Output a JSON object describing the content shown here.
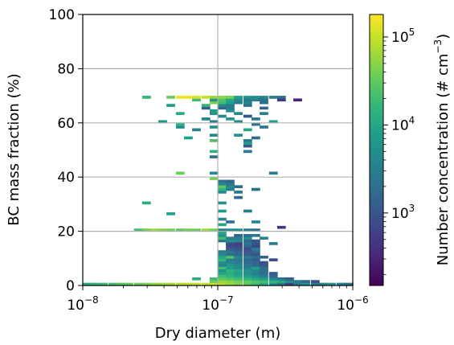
{
  "chart_data": {
    "type": "heatmap",
    "title": "",
    "xlabel": "Dry diameter (m)",
    "ylabel": "BC mass fraction (%)",
    "xscale": "log",
    "xlim": [
      1e-08,
      1e-06
    ],
    "ylim": [
      0,
      100
    ],
    "grid": true,
    "x_ticks": [
      {
        "value": 1e-08,
        "base": "10",
        "exp": "−8"
      },
      {
        "value": 1e-07,
        "base": "10",
        "exp": "−7"
      },
      {
        "value": 1e-06,
        "base": "10",
        "exp": "−6"
      }
    ],
    "y_ticks": [
      {
        "value": 0,
        "label": "0"
      },
      {
        "value": 20,
        "label": "20"
      },
      {
        "value": 40,
        "label": "40"
      },
      {
        "value": 60,
        "label": "60"
      },
      {
        "value": 80,
        "label": "80"
      },
      {
        "value": 100,
        "label": "100"
      }
    ],
    "colorbar": {
      "label": "Number concentration (# cm",
      "label_exp": "−3",
      "label_close": ")",
      "scale": "log",
      "colormap": "viridis",
      "range": [
        150,
        180000
      ],
      "ticks": [
        {
          "value": 1000,
          "base": "10",
          "exp": "3"
        },
        {
          "value": 10000,
          "base": "10",
          "exp": "4"
        },
        {
          "value": 100000,
          "base": "10",
          "exp": "5"
        }
      ]
    },
    "bins_per_decade": 16,
    "y_bin_width": 1,
    "cells": [
      [
        -8.0,
        0.5,
        12000
      ],
      [
        -7.94,
        0.5,
        15000
      ],
      [
        -7.88,
        0.5,
        18000
      ],
      [
        -7.81,
        0.5,
        20000
      ],
      [
        -7.75,
        0.5,
        25000
      ],
      [
        -7.69,
        0.5,
        30000
      ],
      [
        -7.62,
        0.5,
        35000
      ],
      [
        -7.56,
        0.5,
        40000
      ],
      [
        -7.5,
        0.5,
        50000
      ],
      [
        -7.44,
        0.5,
        60000
      ],
      [
        -7.38,
        0.5,
        70000
      ],
      [
        -7.31,
        0.5,
        80000
      ],
      [
        -7.25,
        0.5,
        90000
      ],
      [
        -7.19,
        0.5,
        100000
      ],
      [
        -7.12,
        0.5,
        100000
      ],
      [
        -7.06,
        0.5,
        100000
      ],
      [
        -7.0,
        0.5,
        80000
      ],
      [
        -6.94,
        0.5,
        60000
      ],
      [
        -6.88,
        0.5,
        45000
      ],
      [
        -6.81,
        0.5,
        30000
      ],
      [
        -6.75,
        0.5,
        20000
      ],
      [
        -6.69,
        0.5,
        12000
      ],
      [
        -6.62,
        0.5,
        6000
      ],
      [
        -6.56,
        0.5,
        2500
      ],
      [
        -6.5,
        0.5,
        600
      ],
      [
        -6.44,
        0.5,
        3000
      ],
      [
        -6.38,
        0.5,
        5000
      ],
      [
        -6.31,
        0.5,
        3000
      ],
      [
        -6.25,
        0.5,
        4000
      ],
      [
        -6.19,
        0.5,
        6000
      ],
      [
        -6.12,
        0.5,
        3000
      ],
      [
        -6.06,
        0.5,
        2000
      ],
      [
        -7.06,
        1.5,
        40000
      ],
      [
        -7.0,
        1.5,
        60000
      ],
      [
        -6.94,
        1.5,
        50000
      ],
      [
        -6.88,
        1.5,
        40000
      ],
      [
        -6.81,
        1.5,
        30000
      ],
      [
        -6.75,
        1.5,
        25000
      ],
      [
        -6.69,
        1.5,
        20000
      ],
      [
        -6.62,
        1.5,
        15000
      ],
      [
        -6.56,
        1.5,
        10000
      ],
      [
        -6.5,
        1.5,
        5000
      ],
      [
        -6.44,
        1.5,
        3000
      ],
      [
        -6.38,
        1.5,
        1500
      ],
      [
        -6.31,
        1.5,
        800
      ],
      [
        -7.19,
        2.5,
        12000
      ],
      [
        -7.06,
        2.5,
        20000
      ],
      [
        -7.0,
        2.5,
        30000
      ],
      [
        -6.94,
        2.5,
        25000
      ],
      [
        -6.88,
        2.5,
        20000
      ],
      [
        -6.81,
        2.5,
        15000
      ],
      [
        -6.75,
        2.5,
        10000
      ],
      [
        -6.69,
        2.5,
        7000
      ],
      [
        -6.62,
        2.5,
        4000
      ],
      [
        -6.56,
        2.5,
        2500
      ],
      [
        -6.5,
        2.5,
        1200
      ],
      [
        -7.0,
        3.5,
        20000
      ],
      [
        -6.94,
        3.5,
        15000
      ],
      [
        -6.88,
        3.5,
        10000
      ],
      [
        -6.81,
        3.5,
        8000
      ],
      [
        -6.75,
        3.5,
        6000
      ],
      [
        -6.69,
        3.5,
        3000
      ],
      [
        -6.62,
        3.5,
        1500
      ],
      [
        -7.0,
        4.5,
        10000
      ],
      [
        -6.94,
        4.5,
        12000
      ],
      [
        -6.88,
        4.5,
        8000
      ],
      [
        -6.81,
        4.5,
        5000
      ],
      [
        -6.75,
        4.5,
        3000
      ],
      [
        -6.69,
        4.5,
        2000
      ],
      [
        -6.62,
        4.5,
        1200
      ],
      [
        -7.0,
        5.5,
        6000
      ],
      [
        -6.94,
        5.5,
        15000
      ],
      [
        -6.88,
        5.5,
        10000
      ],
      [
        -6.81,
        5.5,
        6000
      ],
      [
        -6.75,
        5.5,
        4000
      ],
      [
        -6.69,
        5.5,
        2000
      ],
      [
        -7.0,
        6.5,
        20000
      ],
      [
        -6.94,
        6.5,
        8000
      ],
      [
        -6.88,
        6.5,
        5000
      ],
      [
        -6.81,
        6.5,
        3000
      ],
      [
        -6.75,
        6.5,
        8000
      ],
      [
        -6.69,
        6.5,
        2000
      ],
      [
        -7.0,
        7.5,
        3000
      ],
      [
        -6.94,
        7.5,
        6000
      ],
      [
        -6.88,
        7.5,
        4000
      ],
      [
        -6.81,
        7.5,
        2500
      ],
      [
        -6.75,
        7.5,
        1500
      ],
      [
        -6.69,
        7.5,
        1000
      ],
      [
        -7.0,
        8.5,
        5000
      ],
      [
        -6.94,
        8.5,
        4000
      ],
      [
        -6.88,
        8.5,
        3000
      ],
      [
        -6.81,
        8.5,
        2000
      ],
      [
        -6.75,
        8.5,
        1500
      ],
      [
        -6.69,
        8.5,
        900
      ],
      [
        -7.0,
        9.5,
        15000
      ],
      [
        -6.94,
        9.5,
        3000
      ],
      [
        -6.88,
        9.5,
        2500
      ],
      [
        -6.81,
        9.5,
        1800
      ],
      [
        -6.75,
        9.5,
        1200
      ],
      [
        -6.62,
        9.5,
        800
      ],
      [
        -7.0,
        10.5,
        10000
      ],
      [
        -6.94,
        10.5,
        25000
      ],
      [
        -6.88,
        10.5,
        4000
      ],
      [
        -6.81,
        10.5,
        3000
      ],
      [
        -6.75,
        10.5,
        2000
      ],
      [
        -6.69,
        10.5,
        1500
      ],
      [
        -7.0,
        11.5,
        4000
      ],
      [
        -6.94,
        11.5,
        2000
      ],
      [
        -6.88,
        11.5,
        1500
      ],
      [
        -6.81,
        11.5,
        1200
      ],
      [
        -6.75,
        11.5,
        900
      ],
      [
        -7.0,
        12.5,
        3000
      ],
      [
        -6.94,
        12.5,
        2500
      ],
      [
        -6.88,
        12.5,
        1500
      ],
      [
        -6.81,
        12.5,
        1000
      ],
      [
        -6.75,
        12.5,
        1500
      ],
      [
        -6.94,
        13.5,
        1200
      ],
      [
        -6.88,
        13.5,
        1000
      ],
      [
        -6.81,
        13.5,
        800
      ],
      [
        -6.75,
        13.5,
        3000
      ],
      [
        -6.94,
        14.5,
        800
      ],
      [
        -6.88,
        14.5,
        700
      ],
      [
        -6.81,
        14.5,
        1500
      ],
      [
        -6.75,
        14.5,
        700
      ],
      [
        -6.94,
        15.5,
        900
      ],
      [
        -6.88,
        15.5,
        600
      ],
      [
        -6.81,
        15.5,
        2500
      ],
      [
        -6.75,
        15.5,
        1000
      ],
      [
        -6.62,
        15.5,
        3000
      ],
      [
        -7.0,
        16.5,
        2500
      ],
      [
        -6.94,
        16.5,
        5000
      ],
      [
        -6.88,
        16.5,
        4000
      ],
      [
        -6.81,
        16.5,
        1500
      ],
      [
        -6.75,
        16.5,
        1000
      ],
      [
        -7.0,
        17.5,
        20000
      ],
      [
        -6.94,
        17.5,
        3000
      ],
      [
        -6.88,
        17.5,
        3000
      ],
      [
        -6.81,
        17.5,
        6000
      ],
      [
        -6.69,
        17.5,
        4000
      ],
      [
        -7.0,
        18.5,
        6000
      ],
      [
        -6.88,
        18.5,
        1500
      ],
      [
        -6.81,
        18.5,
        2000
      ],
      [
        -6.75,
        18.5,
        2500
      ],
      [
        -7.0,
        19.5,
        10000
      ],
      [
        -7.62,
        20.5,
        20000
      ],
      [
        -7.56,
        20.5,
        40000
      ],
      [
        -7.5,
        20.5,
        60000
      ],
      [
        -7.44,
        20.5,
        50000
      ],
      [
        -7.38,
        20.5,
        40000
      ],
      [
        -7.31,
        20.5,
        30000
      ],
      [
        -7.25,
        20.5,
        40000
      ],
      [
        -7.19,
        20.5,
        35000
      ],
      [
        -7.12,
        20.5,
        60000
      ],
      [
        -7.06,
        20.5,
        40000
      ],
      [
        -7.0,
        20.5,
        3000
      ],
      [
        -6.94,
        20.5,
        5000
      ],
      [
        -6.88,
        20.5,
        6000
      ],
      [
        -6.81,
        20.5,
        3000
      ],
      [
        -6.75,
        20.5,
        2000
      ],
      [
        -6.56,
        21.5,
        500
      ],
      [
        -7.0,
        22.5,
        10000
      ],
      [
        -6.94,
        23.5,
        2000
      ],
      [
        -6.75,
        23.5,
        4000
      ],
      [
        -7.0,
        24.5,
        4000
      ],
      [
        -7.38,
        26.5,
        9000
      ],
      [
        -7.0,
        27.5,
        8000
      ],
      [
        -6.81,
        27.5,
        3000
      ],
      [
        -7.56,
        30.5,
        12000
      ],
      [
        -7.0,
        30.5,
        5000
      ],
      [
        -6.88,
        32.5,
        1500
      ],
      [
        -7.0,
        34.5,
        4000
      ],
      [
        -6.88,
        34.5,
        2500
      ],
      [
        -7.0,
        35.5,
        15000
      ],
      [
        -6.94,
        35.5,
        3000
      ],
      [
        -6.75,
        35.5,
        2000
      ],
      [
        -7.0,
        36.5,
        30000
      ],
      [
        -6.94,
        36.5,
        4000
      ],
      [
        -6.88,
        36.5,
        2000
      ],
      [
        -7.0,
        37.5,
        4000
      ],
      [
        -6.94,
        37.5,
        2500
      ],
      [
        -7.0,
        38.5,
        2000
      ],
      [
        -6.94,
        38.5,
        1500
      ],
      [
        -7.06,
        39.5,
        40000
      ],
      [
        -7.31,
        41.5,
        35000
      ],
      [
        -7.06,
        41.5,
        4000
      ],
      [
        -6.62,
        41.5,
        3000
      ],
      [
        -7.06,
        47.5,
        2000
      ],
      [
        -7.06,
        49.5,
        15000
      ],
      [
        -6.81,
        49.5,
        3000
      ],
      [
        -6.81,
        51.5,
        1000
      ],
      [
        -6.81,
        52.5,
        7000
      ],
      [
        -7.06,
        53.5,
        25000
      ],
      [
        -6.81,
        53.5,
        3000
      ],
      [
        -7.06,
        55.5,
        4000
      ],
      [
        -6.88,
        55.5,
        5000
      ],
      [
        -7.25,
        54.5,
        8000
      ],
      [
        -6.75,
        54.5,
        2000
      ],
      [
        -7.19,
        57.5,
        3000
      ],
      [
        -6.81,
        57.5,
        10000
      ],
      [
        -7.31,
        58.5,
        5000
      ],
      [
        -7.06,
        58.5,
        5000
      ],
      [
        -6.69,
        58.5,
        2000
      ],
      [
        -7.31,
        59.5,
        15000
      ],
      [
        -6.75,
        59.5,
        2500
      ],
      [
        -7.06,
        60.5,
        3000
      ],
      [
        -6.88,
        60.5,
        5000
      ],
      [
        -6.62,
        60.5,
        8000
      ],
      [
        -7.44,
        60.5,
        6000
      ],
      [
        -7.12,
        61.5,
        3500
      ],
      [
        -6.94,
        61.5,
        6000
      ],
      [
        -6.75,
        61.5,
        2500
      ],
      [
        -7.0,
        62.5,
        4000
      ],
      [
        -6.81,
        62.5,
        1000
      ],
      [
        -7.31,
        63.5,
        12000
      ],
      [
        -7.06,
        63.5,
        6000
      ],
      [
        -6.88,
        63.5,
        4000
      ],
      [
        -6.69,
        63.5,
        3000
      ],
      [
        -7.06,
        64.5,
        8000
      ],
      [
        -6.94,
        64.5,
        5000
      ],
      [
        -7.12,
        65.5,
        1200
      ],
      [
        -7.0,
        65.5,
        1500
      ],
      [
        -6.94,
        65.5,
        3000
      ],
      [
        -6.69,
        65.5,
        1500
      ],
      [
        -7.38,
        66.5,
        8000
      ],
      [
        -7.12,
        66.5,
        15000
      ],
      [
        -7.0,
        66.5,
        4000
      ],
      [
        -6.94,
        66.5,
        2500
      ],
      [
        -6.81,
        66.5,
        2000
      ],
      [
        -7.06,
        67.5,
        40000
      ],
      [
        -7.0,
        67.5,
        20000
      ],
      [
        -6.94,
        67.5,
        8000
      ],
      [
        -6.88,
        67.5,
        3000
      ],
      [
        -6.81,
        67.5,
        4000
      ],
      [
        -6.69,
        67.5,
        1800
      ],
      [
        -7.19,
        68.5,
        20000
      ],
      [
        -7.06,
        68.5,
        6000
      ],
      [
        -7.0,
        68.5,
        25000
      ],
      [
        -6.94,
        68.5,
        10000
      ],
      [
        -6.88,
        68.5,
        5000
      ],
      [
        -6.81,
        68.5,
        2500
      ],
      [
        -6.75,
        68.5,
        3000
      ],
      [
        -6.69,
        68.5,
        2000
      ],
      [
        -6.56,
        68.5,
        500
      ],
      [
        -6.44,
        68.5,
        300
      ],
      [
        -7.56,
        69.5,
        15000
      ],
      [
        -7.38,
        69.5,
        35000
      ],
      [
        -7.31,
        69.5,
        150000
      ],
      [
        -7.25,
        69.5,
        150000
      ],
      [
        -7.19,
        69.5,
        120000
      ],
      [
        -7.12,
        69.5,
        100000
      ],
      [
        -7.06,
        69.5,
        60000
      ],
      [
        -7.0,
        69.5,
        50000
      ],
      [
        -6.94,
        69.5,
        40000
      ],
      [
        -6.88,
        69.5,
        8000
      ],
      [
        -6.81,
        69.5,
        6000
      ],
      [
        -6.75,
        69.5,
        5000
      ],
      [
        -6.69,
        69.5,
        4000
      ],
      [
        -6.62,
        69.5,
        3000
      ],
      [
        -6.56,
        69.5,
        2000
      ]
    ]
  }
}
